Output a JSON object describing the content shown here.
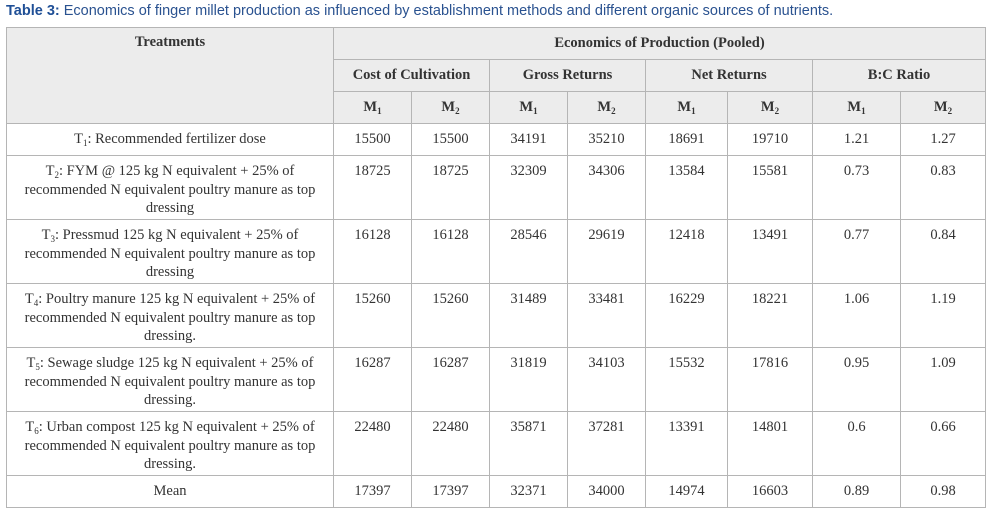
{
  "caption": {
    "label": "Table 3:",
    "text": "Economics of finger millet production as influenced by establishment methods and different organic sources of nutrients."
  },
  "header": {
    "treatments": "Treatments",
    "group": "Economics of Production (Pooled)",
    "subgroups": [
      "Cost of  Cultivation",
      "Gross Returns",
      "Net Returns",
      "B:C Ratio"
    ],
    "methods": [
      {
        "main": "M",
        "sub": "1"
      },
      {
        "main": "M",
        "sub": "2"
      }
    ]
  },
  "rows": [
    {
      "treatment": {
        "main": "T",
        "sub": "1",
        "rest": ": Recommended fertilizer dose"
      },
      "values": [
        15500,
        15500,
        34191,
        35210,
        18691,
        19710,
        1.21,
        1.27
      ]
    },
    {
      "treatment": {
        "main": "T",
        "sub": "2",
        "rest": ": FYM @ 125 kg N equivalent + 25% of recommended N equivalent poultry manure as top dressing"
      },
      "values": [
        18725,
        18725,
        32309,
        34306,
        13584,
        15581,
        0.73,
        0.83
      ]
    },
    {
      "treatment": {
        "main": "T",
        "sub": "3",
        "rest": ": Pressmud 125 kg N equivalent + 25% of recommended N equivalent poultry manure as top dressing"
      },
      "values": [
        16128,
        16128,
        28546,
        29619,
        12418,
        13491,
        0.77,
        0.84
      ]
    },
    {
      "treatment": {
        "main": "T",
        "sub": "4",
        "rest": ": Poultry manure 125 kg N equivalent + 25% of recommended N equivalent poultry manure as top dressing."
      },
      "values": [
        15260,
        15260,
        31489,
        33481,
        16229,
        18221,
        1.06,
        1.19
      ]
    },
    {
      "treatment": {
        "main": "T",
        "sub": "5",
        "rest": ": Sewage sludge 125 kg N equivalent + 25% of recommended N equivalent poultry manure as top dressing."
      },
      "values": [
        16287,
        16287,
        31819,
        34103,
        15532,
        17816,
        0.95,
        1.09
      ]
    },
    {
      "treatment": {
        "main": "T",
        "sub": "6",
        "rest": ": Urban compost 125 kg N equivalent + 25% of recommended N equivalent poultry manure as top dressing."
      },
      "values": [
        22480,
        22480,
        35871,
        37281,
        13391,
        14801,
        0.6,
        0.66
      ]
    }
  ],
  "mean": {
    "label": "Mean",
    "values": [
      17397,
      17397,
      32371,
      34000,
      14974,
      16603,
      0.89,
      0.98
    ]
  }
}
